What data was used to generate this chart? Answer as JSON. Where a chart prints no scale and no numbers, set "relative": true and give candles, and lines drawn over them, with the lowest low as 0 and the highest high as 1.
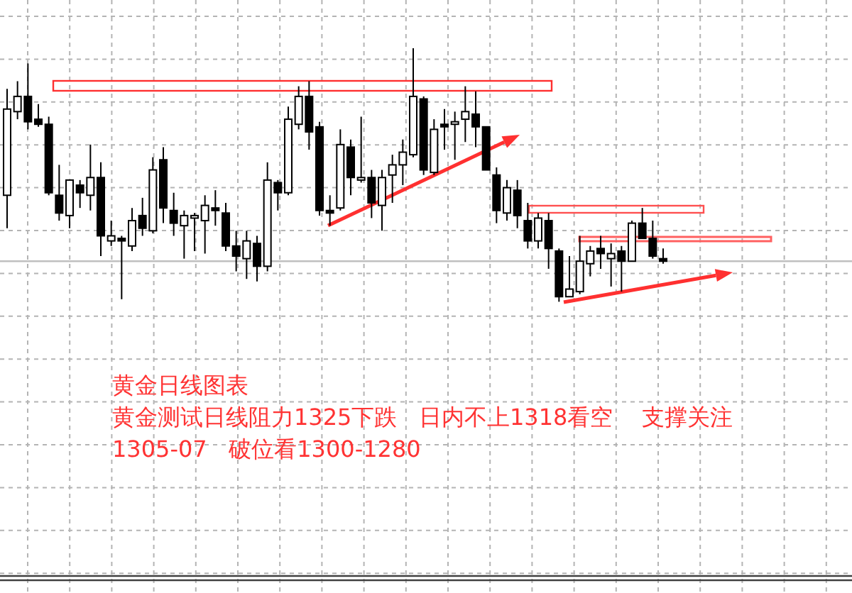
{
  "chart_data": {
    "type": "candlestick",
    "relative": true,
    "grid": true,
    "title": "黄金日线图表",
    "annotations": [
      "黄金测试日线阻力1325下跌   日内不上1318看空    支撑关注",
      "1305-07   破位看1300-1280"
    ],
    "categories": [
      null,
      null,
      null,
      null,
      null,
      null,
      null,
      null,
      null,
      null,
      null,
      null,
      null,
      null,
      null,
      null,
      null,
      null,
      null,
      null,
      null,
      null,
      null,
      null,
      null,
      null,
      null,
      null,
      null,
      null,
      null,
      null,
      null,
      null,
      null,
      null,
      null,
      null,
      null,
      null,
      null,
      null,
      null,
      null,
      null,
      null,
      null,
      null,
      null,
      null,
      null,
      null,
      null,
      null,
      null,
      null,
      null,
      null,
      null,
      null,
      null,
      null,
      null,
      null
    ],
    "ohlc": [
      [
        0.42,
        0.84,
        0.29,
        0.76
      ],
      [
        0.75,
        0.87,
        0.72,
        0.81
      ],
      [
        0.81,
        0.94,
        0.68,
        0.71
      ],
      [
        0.72,
        0.78,
        0.69,
        0.7
      ],
      [
        0.7,
        0.73,
        0.42,
        0.43
      ],
      [
        0.42,
        0.54,
        0.32,
        0.35
      ],
      [
        0.34,
        0.48,
        0.29,
        0.48
      ],
      [
        0.46,
        0.48,
        0.37,
        0.43
      ],
      [
        0.42,
        0.62,
        0.36,
        0.49
      ],
      [
        0.49,
        0.55,
        0.18,
        0.26
      ],
      [
        0.24,
        0.32,
        0.22,
        0.26
      ],
      [
        0.25,
        0.26,
        0.01,
        0.24
      ],
      [
        0.22,
        0.37,
        0.2,
        0.32
      ],
      [
        0.34,
        0.41,
        0.26,
        0.29
      ],
      [
        0.28,
        0.57,
        0.27,
        0.52
      ],
      [
        0.56,
        0.61,
        0.31,
        0.37
      ],
      [
        0.36,
        0.43,
        0.26,
        0.31
      ],
      [
        0.3,
        0.36,
        0.17,
        0.34
      ],
      [
        0.33,
        0.35,
        0.2,
        0.34
      ],
      [
        0.32,
        0.42,
        0.19,
        0.38
      ],
      [
        0.37,
        0.44,
        0.3,
        0.36
      ],
      [
        0.35,
        0.39,
        0.2,
        0.22
      ],
      [
        0.22,
        0.28,
        0.12,
        0.18
      ],
      [
        0.17,
        0.28,
        0.09,
        0.24
      ],
      [
        0.23,
        0.26,
        0.08,
        0.14
      ],
      [
        0.14,
        0.55,
        0.12,
        0.48
      ],
      [
        0.47,
        0.48,
        0.36,
        0.43
      ],
      [
        0.43,
        0.77,
        0.42,
        0.72
      ],
      [
        0.7,
        0.85,
        0.68,
        0.81
      ],
      [
        0.81,
        0.87,
        0.6,
        0.67
      ],
      [
        0.69,
        0.71,
        0.34,
        0.36
      ],
      [
        0.36,
        0.42,
        0.3,
        0.35
      ],
      [
        0.37,
        0.68,
        0.36,
        0.62
      ],
      [
        0.61,
        0.64,
        0.42,
        0.49
      ],
      [
        0.48,
        0.73,
        0.47,
        0.49
      ],
      [
        0.49,
        0.52,
        0.33,
        0.39
      ],
      [
        0.38,
        0.52,
        0.28,
        0.49
      ],
      [
        0.5,
        0.58,
        0.39,
        0.54
      ],
      [
        0.54,
        0.64,
        0.46,
        0.59
      ],
      [
        0.58,
        1,
        0.57,
        0.81
      ],
      [
        0.8,
        0.81,
        0.5,
        0.52
      ],
      [
        0.51,
        0.72,
        0.5,
        0.68
      ],
      [
        0.7,
        0.76,
        0.6,
        0.69
      ],
      [
        0.7,
        0.75,
        0.56,
        0.71
      ],
      [
        0.72,
        0.85,
        0.63,
        0.75
      ],
      [
        0.74,
        0.83,
        0.61,
        0.69
      ],
      [
        0.69,
        0.69,
        0.52,
        0.52
      ],
      [
        0.5,
        0.53,
        0.31,
        0.36
      ],
      [
        0.35,
        0.48,
        0.32,
        0.45
      ],
      [
        0.44,
        0.48,
        0.29,
        0.34
      ],
      [
        0.32,
        0.39,
        0.21,
        0.24
      ],
      [
        0.24,
        0.35,
        0.21,
        0.33
      ],
      [
        0.32,
        0.35,
        0.13,
        0.21
      ],
      [
        0.2,
        0.21,
        0,
        0.02
      ],
      [
        0.02,
        0.18,
        0.02,
        0.05
      ],
      [
        0.04,
        0.26,
        0.03,
        0.16
      ],
      [
        0.15,
        0.22,
        0.1,
        0.2
      ],
      [
        0.21,
        0.26,
        0.13,
        0.19
      ],
      [
        0.17,
        0.23,
        0.06,
        0.19
      ],
      [
        0.2,
        0.22,
        0.04,
        0.16
      ],
      [
        0.16,
        0.32,
        0.16,
        0.31
      ],
      [
        0.31,
        0.37,
        0.25,
        0.25
      ],
      [
        0.25,
        0.32,
        0.17,
        0.18
      ],
      [
        0.17,
        0.21,
        0.15,
        0.16
      ]
    ],
    "ref_lines": [
      {
        "axis": "y",
        "value": 0.16,
        "color": "#c0c0c0"
      }
    ]
  }
}
